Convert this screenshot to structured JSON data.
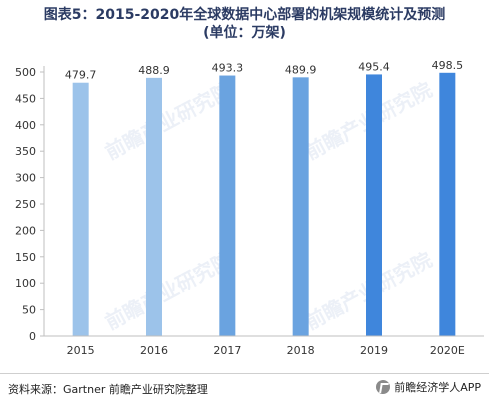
{
  "title_line1": "图表5：2015-2020年全球数据中心部署的机架规模统计及预测",
  "title_line2": "(单位：万架)",
  "footer": {
    "source": "资料来源：Gartner 前瞻产业研究院整理",
    "brand": "前瞻经济学人APP",
    "watermark": "前瞻产业研究院"
  },
  "colors": {
    "bar_light": "#9cc3ea",
    "bar_mid": "#6aa3e0",
    "bar_dark": "#3f86dc",
    "axis": "#bfbfbf",
    "text": "#333333"
  },
  "chart_data": {
    "type": "bar",
    "categories": [
      "2015",
      "2016",
      "2017",
      "2018",
      "2019",
      "2020E"
    ],
    "values": [
      479.7,
      488.9,
      493.3,
      489.9,
      495.4,
      498.5
    ],
    "value_labels": [
      "479.7",
      "488.9",
      "493.3",
      "489.9",
      "495.4",
      "498.5"
    ],
    "ylim": [
      0,
      500
    ],
    "yticks": [
      0,
      50,
      100,
      150,
      200,
      250,
      300,
      350,
      400,
      450,
      500
    ],
    "grid": false,
    "legend": "none"
  }
}
